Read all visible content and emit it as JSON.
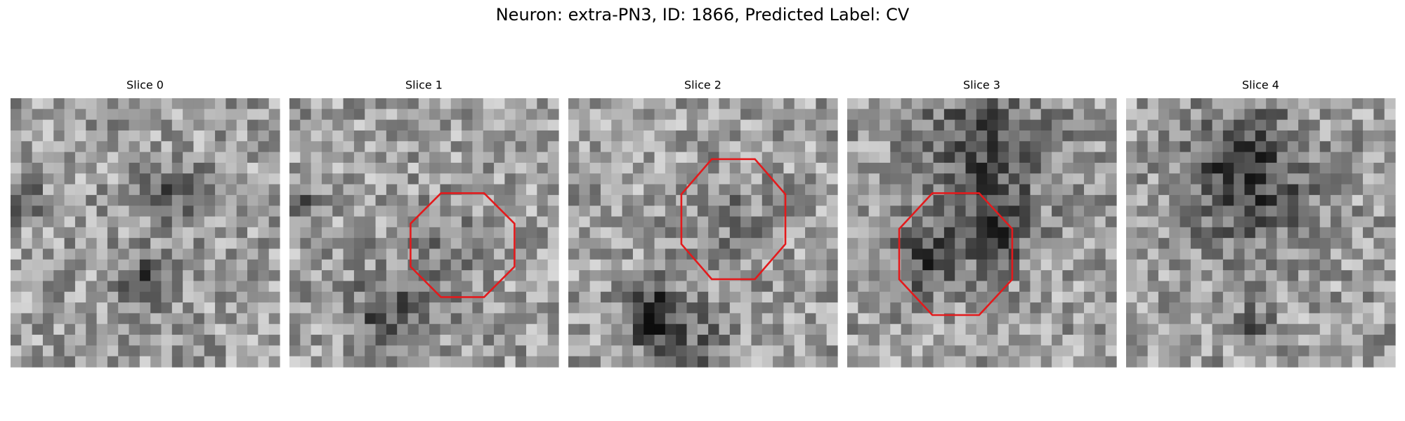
{
  "title": "Neuron: extra-PN3, ID: 1866, Predicted Label: CV",
  "slices": [
    {
      "title": "Slice 0"
    },
    {
      "title": "Slice 1"
    },
    {
      "title": "Slice 2"
    },
    {
      "title": "Slice 3"
    },
    {
      "title": "Slice 4"
    }
  ]
}
